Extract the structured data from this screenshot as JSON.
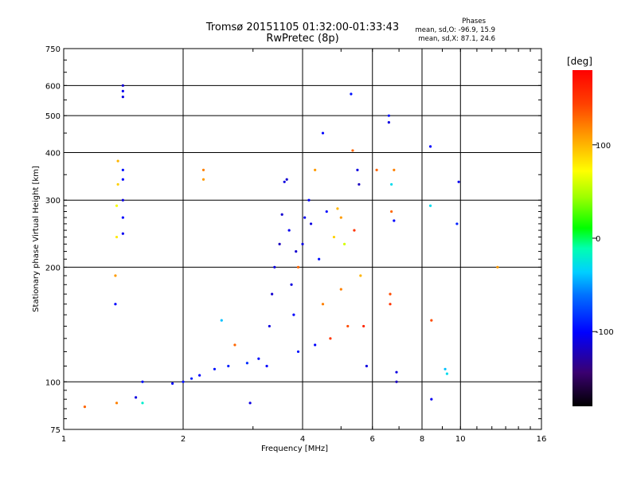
{
  "header": {
    "title": "Tromsø 20151105 01:32:00-01:33:43",
    "subtitle": "RwPretec (8p)",
    "stats_title": "Phases",
    "stats_o": "mean, sd,O: -96.9, 15.9",
    "stats_x": "mean, sd,X:  87.1, 24.6"
  },
  "colorbar": {
    "unit": "[deg]",
    "range": [
      -180,
      180
    ],
    "ticks": [
      {
        "value": 100,
        "label": "100"
      },
      {
        "value": 0,
        "label": "0"
      },
      {
        "value": -100,
        "label": "-100"
      }
    ]
  },
  "chart_data": {
    "type": "scatter",
    "xlabel": "Frequency [MHz]",
    "ylabel": "Stationary phase Virtual Height [km]",
    "x_scale": "log",
    "y_scale": "log",
    "xlim": [
      1,
      16
    ],
    "ylim": [
      75,
      750
    ],
    "grid": true,
    "x_ticks": [
      1,
      2,
      4,
      6,
      8,
      10,
      16
    ],
    "x_tick_labels": [
      "1",
      "2",
      "4",
      "6",
      "8",
      "10",
      "16"
    ],
    "y_ticks": [
      75,
      100,
      200,
      300,
      400,
      500,
      600,
      750
    ],
    "y_tick_labels": [
      "75",
      "100",
      "200",
      "300",
      "400",
      "500",
      "600",
      "750"
    ],
    "color_by": "phase [deg]",
    "points": [
      {
        "f": 1.13,
        "h": 86,
        "phase": 130
      },
      {
        "f": 1.36,
        "h": 88,
        "phase": 120
      },
      {
        "f": 1.35,
        "h": 160,
        "phase": -100
      },
      {
        "f": 1.35,
        "h": 190,
        "phase": 110
      },
      {
        "f": 1.36,
        "h": 240,
        "phase": 80
      },
      {
        "f": 1.36,
        "h": 290,
        "phase": 70
      },
      {
        "f": 1.37,
        "h": 330,
        "phase": 90
      },
      {
        "f": 1.37,
        "h": 380,
        "phase": 100
      },
      {
        "f": 1.41,
        "h": 245,
        "phase": -105
      },
      {
        "f": 1.41,
        "h": 270,
        "phase": -100
      },
      {
        "f": 1.41,
        "h": 300,
        "phase": -110
      },
      {
        "f": 1.41,
        "h": 340,
        "phase": -100
      },
      {
        "f": 1.41,
        "h": 360,
        "phase": -95
      },
      {
        "f": 1.41,
        "h": 560,
        "phase": -110
      },
      {
        "f": 1.41,
        "h": 580,
        "phase": -105
      },
      {
        "f": 1.41,
        "h": 600,
        "phase": -115
      },
      {
        "f": 1.52,
        "h": 91,
        "phase": -110
      },
      {
        "f": 1.58,
        "h": 100,
        "phase": -95
      },
      {
        "f": 1.58,
        "h": 88,
        "phase": -20
      },
      {
        "f": 1.88,
        "h": 99,
        "phase": -100
      },
      {
        "f": 2.0,
        "h": 100,
        "phase": -95
      },
      {
        "f": 2.1,
        "h": 102,
        "phase": -90
      },
      {
        "f": 2.2,
        "h": 104,
        "phase": -100
      },
      {
        "f": 2.25,
        "h": 340,
        "phase": 110
      },
      {
        "f": 2.25,
        "h": 360,
        "phase": 120
      },
      {
        "f": 2.4,
        "h": 108,
        "phase": -95
      },
      {
        "f": 2.5,
        "h": 145,
        "phase": -40
      },
      {
        "f": 2.6,
        "h": 110,
        "phase": -90
      },
      {
        "f": 2.7,
        "h": 125,
        "phase": 130
      },
      {
        "f": 2.9,
        "h": 112,
        "phase": -85
      },
      {
        "f": 2.95,
        "h": 88,
        "phase": -110
      },
      {
        "f": 3.1,
        "h": 115,
        "phase": -95
      },
      {
        "f": 3.25,
        "h": 110,
        "phase": -100
      },
      {
        "f": 3.3,
        "h": 140,
        "phase": -110
      },
      {
        "f": 3.35,
        "h": 170,
        "phase": -115
      },
      {
        "f": 3.4,
        "h": 200,
        "phase": -110
      },
      {
        "f": 3.5,
        "h": 230,
        "phase": -120
      },
      {
        "f": 3.55,
        "h": 275,
        "phase": -115
      },
      {
        "f": 3.6,
        "h": 335,
        "phase": -110
      },
      {
        "f": 3.65,
        "h": 340,
        "phase": -115
      },
      {
        "f": 3.7,
        "h": 250,
        "phase": -105
      },
      {
        "f": 3.75,
        "h": 180,
        "phase": -110
      },
      {
        "f": 3.8,
        "h": 150,
        "phase": -100
      },
      {
        "f": 3.85,
        "h": 220,
        "phase": -115
      },
      {
        "f": 3.9,
        "h": 200,
        "phase": 130
      },
      {
        "f": 3.9,
        "h": 120,
        "phase": -95
      },
      {
        "f": 4.0,
        "h": 230,
        "phase": -110
      },
      {
        "f": 4.05,
        "h": 270,
        "phase": -105
      },
      {
        "f": 4.15,
        "h": 300,
        "phase": -100
      },
      {
        "f": 4.2,
        "h": 260,
        "phase": -110
      },
      {
        "f": 4.3,
        "h": 360,
        "phase": 110
      },
      {
        "f": 4.3,
        "h": 125,
        "phase": -100
      },
      {
        "f": 4.4,
        "h": 210,
        "phase": -95
      },
      {
        "f": 4.5,
        "h": 450,
        "phase": -100
      },
      {
        "f": 4.5,
        "h": 160,
        "phase": 120
      },
      {
        "f": 4.6,
        "h": 280,
        "phase": -100
      },
      {
        "f": 4.7,
        "h": 130,
        "phase": 150
      },
      {
        "f": 4.8,
        "h": 240,
        "phase": 90
      },
      {
        "f": 4.9,
        "h": 285,
        "phase": 100
      },
      {
        "f": 5.0,
        "h": 270,
        "phase": 110
      },
      {
        "f": 5.0,
        "h": 175,
        "phase": 120
      },
      {
        "f": 5.1,
        "h": 230,
        "phase": 60
      },
      {
        "f": 5.2,
        "h": 140,
        "phase": 140
      },
      {
        "f": 5.3,
        "h": 570,
        "phase": -95
      },
      {
        "f": 5.35,
        "h": 405,
        "phase": 130
      },
      {
        "f": 5.4,
        "h": 250,
        "phase": 150
      },
      {
        "f": 5.5,
        "h": 360,
        "phase": -110
      },
      {
        "f": 5.55,
        "h": 330,
        "phase": -120
      },
      {
        "f": 5.6,
        "h": 190,
        "phase": 100
      },
      {
        "f": 5.7,
        "h": 140,
        "phase": 160
      },
      {
        "f": 5.8,
        "h": 110,
        "phase": -110
      },
      {
        "f": 6.15,
        "h": 360,
        "phase": 130
      },
      {
        "f": 6.6,
        "h": 480,
        "phase": -110
      },
      {
        "f": 6.6,
        "h": 500,
        "phase": -95
      },
      {
        "f": 6.65,
        "h": 170,
        "phase": 140
      },
      {
        "f": 6.65,
        "h": 160,
        "phase": 150
      },
      {
        "f": 6.7,
        "h": 280,
        "phase": 130
      },
      {
        "f": 6.7,
        "h": 330,
        "phase": -30
      },
      {
        "f": 6.8,
        "h": 360,
        "phase": 120
      },
      {
        "f": 6.8,
        "h": 265,
        "phase": -100
      },
      {
        "f": 6.9,
        "h": 106,
        "phase": -110
      },
      {
        "f": 6.9,
        "h": 100,
        "phase": -120
      },
      {
        "f": 8.4,
        "h": 415,
        "phase": -100
      },
      {
        "f": 8.4,
        "h": 290,
        "phase": -30
      },
      {
        "f": 8.45,
        "h": 145,
        "phase": 140
      },
      {
        "f": 8.45,
        "h": 90,
        "phase": -105
      },
      {
        "f": 9.15,
        "h": 108,
        "phase": -40
      },
      {
        "f": 9.25,
        "h": 105,
        "phase": -30
      },
      {
        "f": 9.8,
        "h": 260,
        "phase": -90
      },
      {
        "f": 9.9,
        "h": 335,
        "phase": -105
      },
      {
        "f": 12.4,
        "h": 200,
        "phase": 110
      }
    ]
  }
}
